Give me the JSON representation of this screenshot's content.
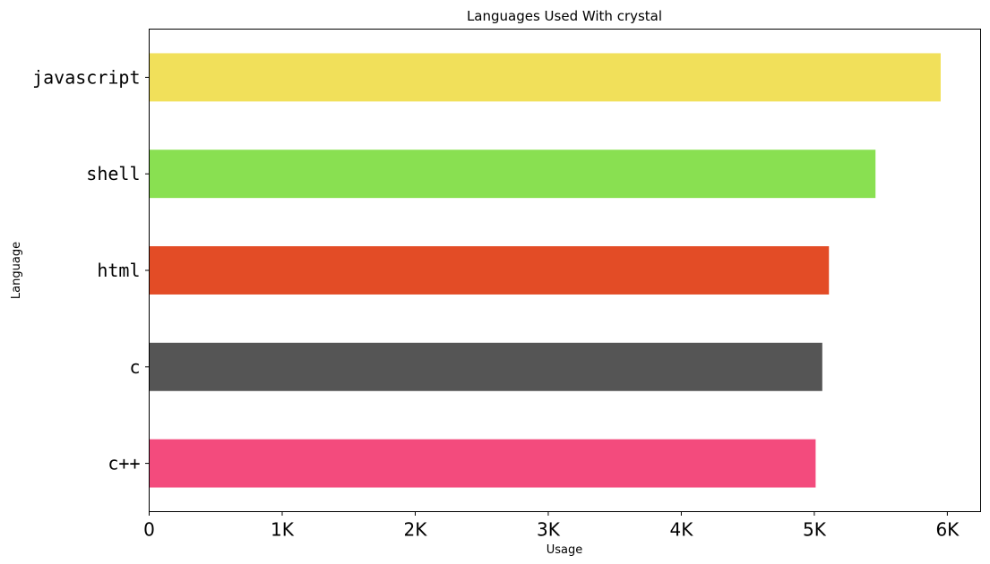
{
  "chart_data": {
    "type": "bar",
    "orientation": "horizontal",
    "title": "Languages Used With crystal",
    "xlabel": "Usage",
    "ylabel": "Language",
    "categories": [
      "javascript",
      "shell",
      "html",
      "c",
      "c++"
    ],
    "values": [
      5950,
      5460,
      5110,
      5060,
      5010
    ],
    "colors": [
      "#f1e05a",
      "#89e051",
      "#e34c26",
      "#555555",
      "#f34b7d"
    ],
    "xlim": [
      0,
      6250
    ],
    "x_ticks": [
      0,
      1000,
      2000,
      3000,
      4000,
      5000,
      6000
    ],
    "x_tick_labels": [
      "0",
      "1K",
      "2K",
      "3K",
      "4K",
      "5K",
      "6K"
    ],
    "grid": false,
    "legend": "none"
  }
}
